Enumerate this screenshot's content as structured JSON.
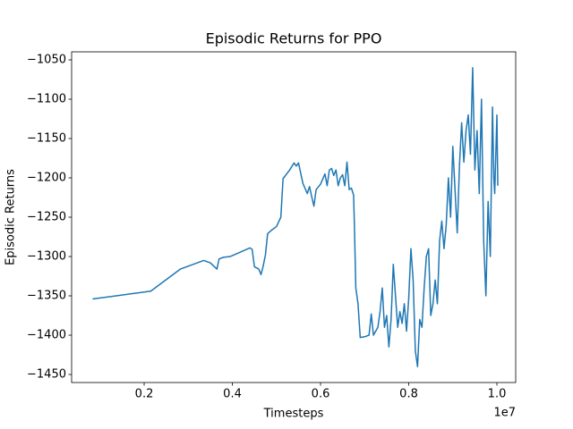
{
  "chart_data": {
    "type": "line",
    "title": "Episodic Returns for PPO",
    "xlabel": "Timesteps",
    "ylabel": "Episodic Returns",
    "x_offset_label": "1e7",
    "xlim": [
      0.0355,
      1.0426
    ],
    "ylim": [
      -1460.2,
      -1039.8
    ],
    "xticks": [
      0.2,
      0.4,
      0.6,
      0.8,
      {
        "value": 1,
        "label": "1.0"
      }
    ],
    "yticks": [
      {
        "value": -1450,
        "label": "−1450"
      },
      {
        "value": -1400,
        "label": "−1400"
      },
      {
        "value": -1350,
        "label": "−1350"
      },
      {
        "value": -1300,
        "label": "−1300"
      },
      {
        "value": -1250,
        "label": "−1250"
      },
      {
        "value": -1200,
        "label": "−1200"
      },
      {
        "value": -1150,
        "label": "−1150"
      },
      {
        "value": -1100,
        "label": "−1100"
      },
      {
        "value": -1050,
        "label": "−1050"
      }
    ],
    "grid": false,
    "x": [
      0.083,
      0.215,
      0.282,
      0.335,
      0.35,
      0.365,
      0.37,
      0.38,
      0.395,
      0.42,
      0.44,
      0.445,
      0.45,
      0.46,
      0.465,
      0.47,
      0.475,
      0.48,
      0.49,
      0.5,
      0.51,
      0.515,
      0.53,
      0.54,
      0.545,
      0.55,
      0.56,
      0.57,
      0.575,
      0.58,
      0.585,
      0.59,
      0.6,
      0.61,
      0.615,
      0.62,
      0.625,
      0.63,
      0.635,
      0.64,
      0.645,
      0.65,
      0.655,
      0.66,
      0.665,
      0.67,
      0.675,
      0.677,
      0.68,
      0.685,
      0.69,
      0.7,
      0.71,
      0.715,
      0.72,
      0.73,
      0.735,
      0.74,
      0.745,
      0.75,
      0.755,
      0.76,
      0.765,
      0.77,
      0.775,
      0.78,
      0.785,
      0.79,
      0.795,
      0.8,
      0.805,
      0.81,
      0.815,
      0.82,
      0.825,
      0.83,
      0.835,
      0.84,
      0.845,
      0.85,
      0.855,
      0.86,
      0.865,
      0.87,
      0.875,
      0.88,
      0.885,
      0.89,
      0.895,
      0.9,
      0.905,
      0.91,
      0.915,
      0.92,
      0.925,
      0.93,
      0.935,
      0.94,
      0.945,
      0.95,
      0.955,
      0.96,
      0.965,
      0.97,
      0.975,
      0.98,
      0.985,
      0.99,
      0.993,
      0.995,
      0.998,
      1.0,
      1.002
    ],
    "series": [
      {
        "name": "Episodic Returns",
        "color": "#1f77b4",
        "values": [
          -1354,
          -1344,
          -1316,
          -1305,
          -1308,
          -1316,
          -1303,
          -1301,
          -1300,
          -1294,
          -1289,
          -1291,
          -1313,
          -1316,
          -1323,
          -1312,
          -1298,
          -1271,
          -1266,
          -1262,
          -1250,
          -1201,
          -1190,
          -1181,
          -1185,
          -1181,
          -1207,
          -1220,
          -1211,
          -1224,
          -1236,
          -1215,
          -1208,
          -1195,
          -1210,
          -1190,
          -1188,
          -1197,
          -1190,
          -1210,
          -1200,
          -1196,
          -1210,
          -1180,
          -1215,
          -1213,
          -1222,
          -1265,
          -1340,
          -1360,
          -1403,
          -1402,
          -1400,
          -1373,
          -1400,
          -1390,
          -1370,
          -1340,
          -1390,
          -1375,
          -1415,
          -1380,
          -1310,
          -1350,
          -1390,
          -1370,
          -1385,
          -1360,
          -1395,
          -1353,
          -1290,
          -1330,
          -1420,
          -1440,
          -1380,
          -1390,
          -1340,
          -1300,
          -1290,
          -1375,
          -1360,
          -1330,
          -1360,
          -1280,
          -1255,
          -1290,
          -1260,
          -1200,
          -1250,
          -1160,
          -1215,
          -1270,
          -1185,
          -1130,
          -1180,
          -1140,
          -1120,
          -1170,
          -1060,
          -1190,
          -1140,
          -1220,
          -1100,
          -1280,
          -1350,
          -1230,
          -1300,
          -1110,
          -1200,
          -1220,
          -1160,
          -1120,
          -1210
        ]
      }
    ]
  }
}
